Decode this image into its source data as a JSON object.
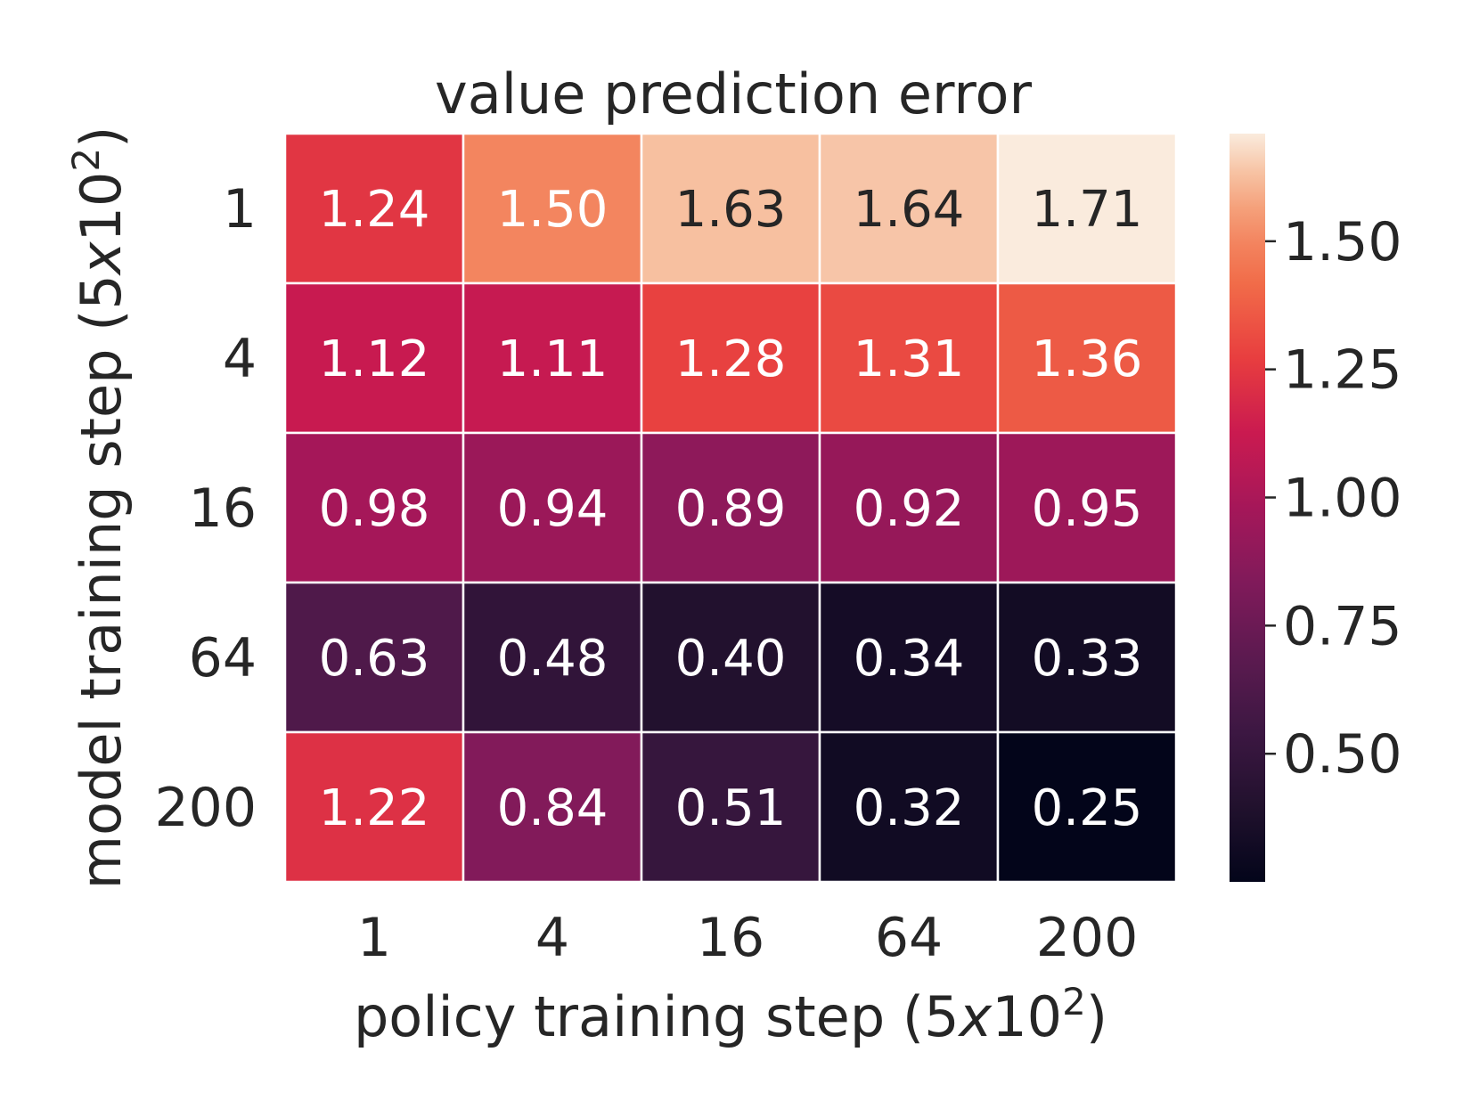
{
  "chart_data": {
    "type": "heatmap",
    "title": "value prediction error",
    "xlabel": {
      "text": "policy training step (5",
      "italic": "x",
      "base": "10",
      "sup": "2",
      "close": ")"
    },
    "ylabel": {
      "text": "model training step (5",
      "italic": "x",
      "base": "10",
      "sup": "2",
      "close": ")"
    },
    "x_categories": [
      "1",
      "4",
      "16",
      "64",
      "200"
    ],
    "y_categories": [
      "1",
      "4",
      "16",
      "64",
      "200"
    ],
    "values": [
      [
        1.24,
        1.5,
        1.63,
        1.64,
        1.71
      ],
      [
        1.12,
        1.11,
        1.28,
        1.31,
        1.36
      ],
      [
        0.98,
        0.94,
        0.89,
        0.92,
        0.95
      ],
      [
        0.63,
        0.48,
        0.4,
        0.34,
        0.33
      ],
      [
        1.22,
        0.84,
        0.51,
        0.32,
        0.25
      ]
    ],
    "value_format": "2 decimals",
    "colormap": "rocket",
    "colorbar": {
      "vmin": 0.25,
      "vmax": 1.71,
      "ticks": [
        0.5,
        0.75,
        1.0,
        1.25,
        1.5
      ],
      "tick_labels": [
        "0.50",
        "0.75",
        "1.00",
        "1.25",
        "1.50"
      ]
    }
  }
}
